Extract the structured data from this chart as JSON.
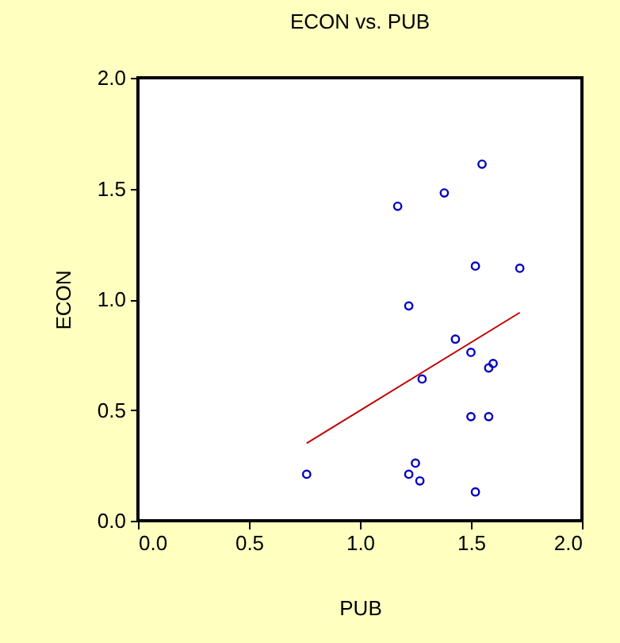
{
  "chart_data": {
    "type": "scatter",
    "title": "ECON vs. PUB",
    "xlabel": "PUB",
    "ylabel": "ECON",
    "xlim": [
      0,
      2
    ],
    "ylim": [
      0,
      2
    ],
    "xticks": [
      {
        "value": 0,
        "label": "0.0"
      },
      {
        "value": 0.5,
        "label": "0.5"
      },
      {
        "value": 1,
        "label": "1.0"
      },
      {
        "value": 1.5,
        "label": "1.5"
      },
      {
        "value": 2,
        "label": "2.0"
      }
    ],
    "yticks": [
      {
        "value": 0,
        "label": "0.0"
      },
      {
        "value": 0.5,
        "label": "0.5"
      },
      {
        "value": 1,
        "label": "1.0"
      },
      {
        "value": 1.5,
        "label": "1.5"
      },
      {
        "value": 2,
        "label": "2.0"
      }
    ],
    "grid": false,
    "series": [
      {
        "marker": "circle",
        "color": "#0000c0",
        "x": [
          1.55,
          1.38,
          1.17,
          1.52,
          1.72,
          1.22,
          1.43,
          1.5,
          1.6,
          1.58,
          1.28,
          1.5,
          1.58,
          1.25,
          1.22,
          0.76,
          1.27,
          1.52
        ],
        "values": [
          1.61,
          1.48,
          1.42,
          1.15,
          1.14,
          0.97,
          0.82,
          0.76,
          0.71,
          0.69,
          0.64,
          0.47,
          0.47,
          0.26,
          0.21,
          0.21,
          0.18,
          0.13
        ]
      },
      {
        "type": "line",
        "color": "#c00000",
        "x": [
          0.76,
          1.72
        ],
        "values": [
          0.35,
          0.94
        ]
      }
    ]
  }
}
